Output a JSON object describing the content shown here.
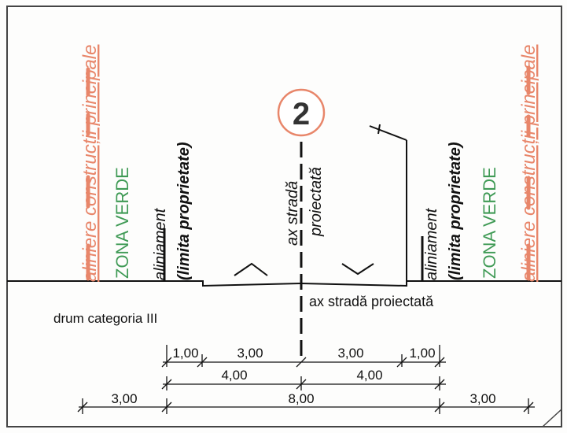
{
  "colors": {
    "orange": "#e8866a",
    "green": "#3f9a55",
    "ink": "#111111",
    "border": "#444444"
  },
  "badge": {
    "number": "2"
  },
  "labels": {
    "aliniere_left": "aliniere construcții principale",
    "aliniere_right": "aliniere construcții principale",
    "zona_verde_left": "ZONA VERDE",
    "zona_verde_right": "ZONA VERDE",
    "aliniament_word": "aliniament",
    "limita": "(limita proprietate)",
    "ax_strada_vertical_1": "ax stradă",
    "ax_strada_vertical_2": "proiectată",
    "ax_strada_horizontal": "ax stradă proiectată",
    "drum_categoria": "drum categoria III"
  },
  "dimensions": {
    "row1": [
      "1,00",
      "3,00",
      "3,00",
      "1,00"
    ],
    "row2": [
      "4,00",
      "4,00"
    ],
    "row3": [
      "3,00",
      "8,00",
      "3,00"
    ]
  }
}
